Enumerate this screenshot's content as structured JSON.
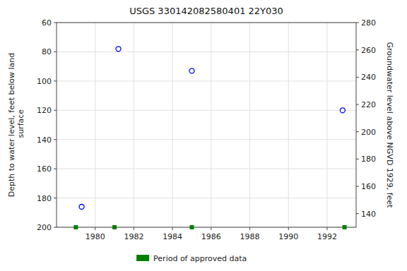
{
  "chart_data": {
    "type": "scatter",
    "title": "USGS 330142082580401 22Y030",
    "ylabel": "Depth to water level, feet below land\n surface",
    "y2label": "Groundwater level above NGVD 1929, feet",
    "series": [
      {
        "x": [
          1979.3,
          1981.2,
          1985.0,
          1992.8
        ],
        "values": [
          186,
          78,
          93,
          120
        ],
        "color": "#0000ff",
        "marker": "circle"
      },
      {
        "name": "Period of approved data",
        "x": [
          1979.0,
          1981.0,
          1985.0,
          1992.9
        ],
        "values": [
          200,
          200,
          200,
          200
        ],
        "color": "#008000",
        "marker": "square"
      }
    ],
    "xlim": [
      1978.0,
      1993.5
    ],
    "xticks": [
      1980,
      1982,
      1984,
      1986,
      1988,
      1990,
      1992
    ],
    "ylim": [
      200,
      60
    ],
    "yticks": [
      60,
      80,
      100,
      120,
      140,
      160,
      180,
      200
    ],
    "y2lim": [
      130,
      280
    ],
    "y2ticks": [
      140,
      160,
      180,
      200,
      220,
      240,
      260,
      280
    ],
    "grid": true,
    "legend": "bottom"
  }
}
